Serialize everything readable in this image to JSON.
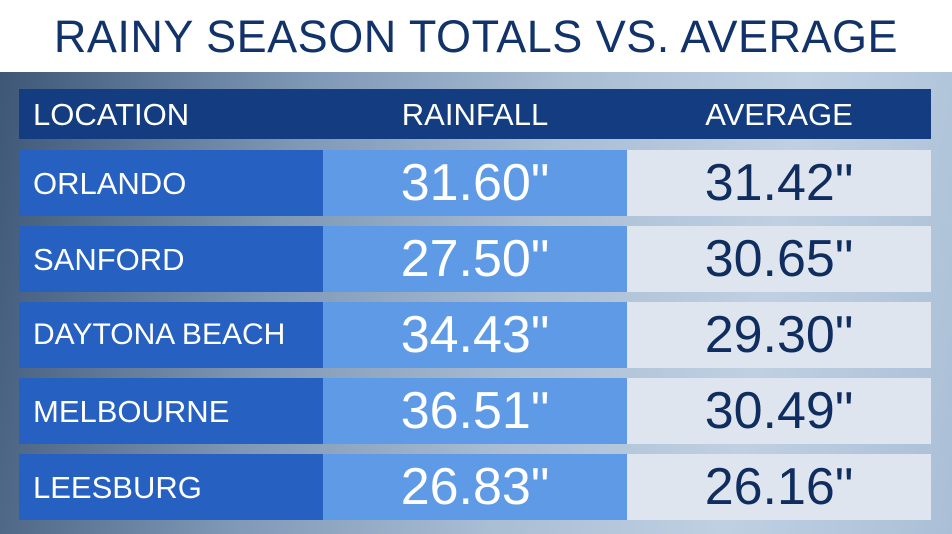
{
  "chart_data": {
    "type": "table",
    "title": "RAINY SEASON TOTALS VS. AVERAGE",
    "columns": [
      "LOCATION",
      "RAINFALL",
      "AVERAGE"
    ],
    "rows": [
      {
        "location": "ORLANDO",
        "rainfall": "31.60\"",
        "average": "31.42\""
      },
      {
        "location": "SANFORD",
        "rainfall": "27.50\"",
        "average": "30.65\""
      },
      {
        "location": "DAYTONA BEACH",
        "rainfall": "34.43\"",
        "average": "29.30\""
      },
      {
        "location": "MELBOURNE",
        "rainfall": "36.51\"",
        "average": "30.49\""
      },
      {
        "location": "LEESBURG",
        "rainfall": "26.83\"",
        "average": "26.16\""
      }
    ],
    "colors": {
      "title": "#12326a",
      "header_bg": "#133d80",
      "location_bg": "#2660c0",
      "rainfall_bg": "#5e9ae6",
      "average_bg": "#dfe5ee",
      "average_text": "#0f2d5f"
    }
  }
}
